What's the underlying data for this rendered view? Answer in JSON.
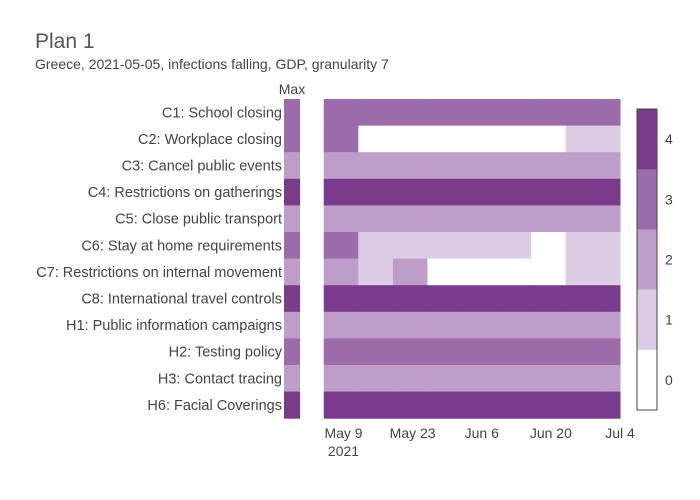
{
  "chart_data": {
    "type": "heatmap",
    "title": "Plan 1",
    "subtitle": "Greece, 2021-05-05, infections falling, GDP, granularity 7",
    "max_label": "Max",
    "rows": [
      "C1: School closing",
      "C2: Workplace closing",
      "C3: Cancel public events",
      "C4: Restrictions on gatherings",
      "C5: Close public transport",
      "C6: Stay at home requirements",
      "C7: Restrictions on internal movement",
      "C8: International travel controls",
      "H1: Public information campaigns",
      "H2: Testing policy",
      "H3: Contact tracing",
      "H6: Facial Coverings"
    ],
    "max_values": [
      3,
      3,
      2,
      4,
      2,
      3,
      2,
      4,
      2,
      3,
      2,
      4
    ],
    "weeks": [
      "2021-05-05",
      "2021-05-12",
      "2021-05-19",
      "2021-05-26",
      "2021-06-02",
      "2021-06-09",
      "2021-06-16",
      "2021-06-23",
      "2021-06-30"
    ],
    "values": [
      [
        3,
        3,
        3,
        3,
        3,
        3,
        3,
        3,
        3
      ],
      [
        3,
        0,
        0,
        0,
        0,
        0,
        0,
        1,
        1
      ],
      [
        2,
        2,
        2,
        2,
        2,
        2,
        2,
        2,
        2
      ],
      [
        4,
        4,
        4,
        4,
        4,
        4,
        4,
        4,
        4
      ],
      [
        2,
        2,
        2,
        2,
        2,
        2,
        2,
        2,
        2
      ],
      [
        3,
        1,
        1,
        1,
        1,
        1,
        0,
        1,
        1
      ],
      [
        2,
        1,
        2,
        0,
        0,
        0,
        0,
        1,
        1
      ],
      [
        4,
        4,
        4,
        4,
        4,
        4,
        4,
        4,
        4
      ],
      [
        2,
        2,
        2,
        2,
        2,
        2,
        2,
        2,
        2
      ],
      [
        3,
        3,
        3,
        3,
        3,
        3,
        3,
        3,
        3
      ],
      [
        2,
        2,
        2,
        2,
        2,
        2,
        2,
        2,
        2
      ],
      [
        4,
        4,
        4,
        4,
        4,
        4,
        4,
        4,
        4
      ]
    ],
    "x_ticks": [
      {
        "date": "2021-05-09",
        "label": "May 9"
      },
      {
        "date": "2021-05-23",
        "label": "May 23"
      },
      {
        "date": "2021-06-06",
        "label": "Jun 6"
      },
      {
        "date": "2021-06-20",
        "label": "Jun 20"
      },
      {
        "date": "2021-07-04",
        "label": "Jul 4"
      }
    ],
    "x_year_label": "2021",
    "x_range": [
      "2021-05-01",
      "2021-07-04"
    ],
    "colorscale": {
      "range": [
        0,
        4
      ],
      "levels": [
        {
          "value": 0,
          "color": "#ffffff"
        },
        {
          "value": 1,
          "color": "#ddcde4"
        },
        {
          "value": 2,
          "color": "#bf9dc9"
        },
        {
          "value": 3,
          "color": "#9c6bab"
        },
        {
          "value": 4,
          "color": "#7b3b8c"
        }
      ],
      "tick_values": [
        0,
        1,
        2,
        3,
        4
      ],
      "tick_labels": [
        "0",
        "1",
        "2",
        "3",
        "4"
      ]
    }
  }
}
